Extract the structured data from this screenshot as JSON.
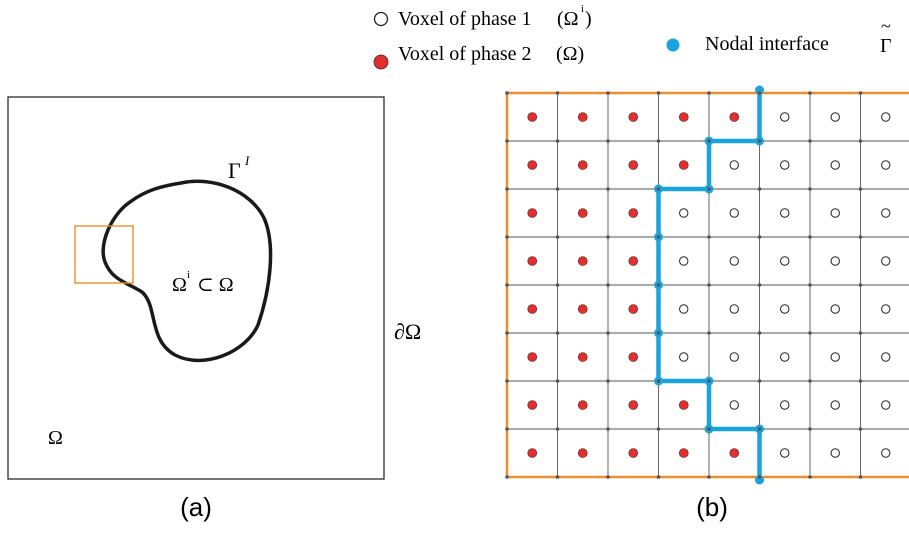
{
  "legend": {
    "phase1_label": "Voxel of phase 1",
    "phase1_symbol": "(Ω",
    "phase1_symbol_sup": "i",
    "phase1_symbol_close": ")",
    "phase2_label": "Voxel of phase 2",
    "phase2_symbol": "(Ω)",
    "interface_label": "Nodal interface",
    "interface_symbol": "Γ",
    "interface_tilde": "~"
  },
  "panel_a": {
    "caption": "(a)",
    "gamma_label": "Γ",
    "gamma_sup": "I",
    "inclusion_label_omega": "Ω",
    "inclusion_label_sup": "i",
    "inclusion_label_rest": "⊂ Ω",
    "boundary_label": "∂Ω",
    "domain_label": "Ω"
  },
  "panel_b": {
    "caption": "(b)",
    "grid": {
      "rows": 8,
      "cols": 8,
      "phase2_cells_per_row": [
        5,
        4,
        3,
        3,
        3,
        3,
        4,
        5
      ]
    }
  },
  "colors": {
    "phase2": "#e52d2d",
    "interface": "#1aa3dc",
    "grid_border": "#ef8c2a",
    "highlight_box": "#ef8c2a",
    "line": "#1a1a1a"
  }
}
